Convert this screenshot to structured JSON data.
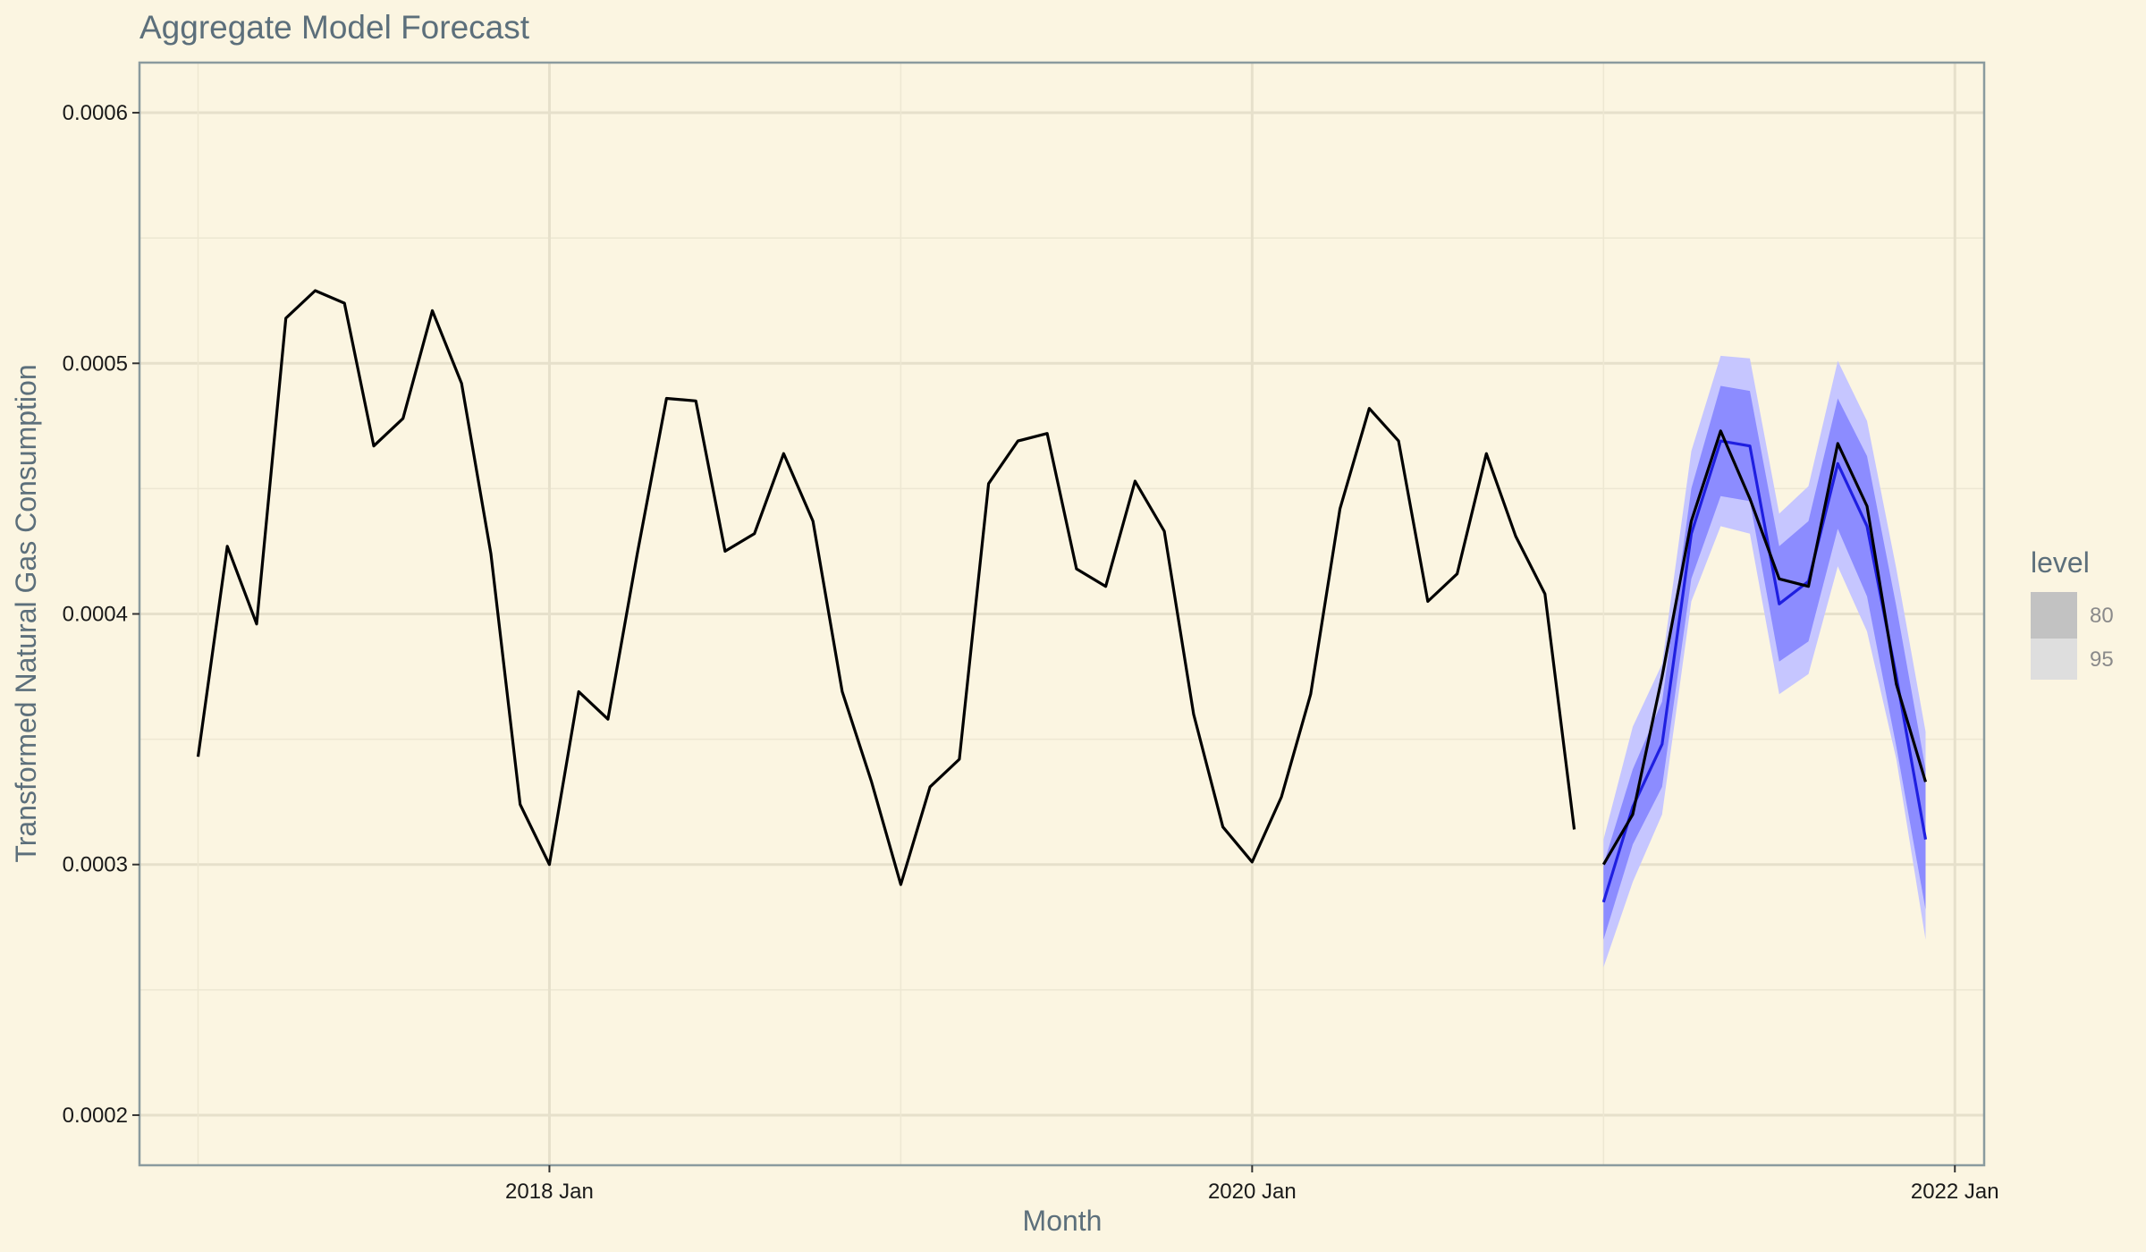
{
  "chart_data": {
    "type": "line",
    "title": "Aggregate Model Forecast",
    "xlabel": "Month",
    "ylabel": "Transformed Natural Gas Consumption",
    "x_ticks": [
      "2018 Jan",
      "2020 Jan",
      "2022 Jan"
    ],
    "y_ticks": [
      "0.0002",
      "0.0003",
      "0.0004",
      "0.0005",
      "0.0006"
    ],
    "xlim": [
      "2016-11",
      "2022-02"
    ],
    "ylim": [
      0.00018,
      0.00062
    ],
    "grid": true,
    "legend": {
      "title": "level",
      "position": "right",
      "entries": [
        {
          "label": "80",
          "color": "#c2c2c2"
        },
        {
          "label": "95",
          "color": "#dedede"
        }
      ]
    },
    "series": [
      {
        "role": "observed",
        "color": "#000000",
        "x": [
          "2017-01",
          "2017-02",
          "2017-03",
          "2017-04",
          "2017-05",
          "2017-06",
          "2017-07",
          "2017-08",
          "2017-09",
          "2017-10",
          "2017-11",
          "2017-12",
          "2018-01",
          "2018-02",
          "2018-03",
          "2018-04",
          "2018-05",
          "2018-06",
          "2018-07",
          "2018-08",
          "2018-09",
          "2018-10",
          "2018-11",
          "2018-12",
          "2019-01",
          "2019-02",
          "2019-03",
          "2019-04",
          "2019-05",
          "2019-06",
          "2019-07",
          "2019-08",
          "2019-09",
          "2019-10",
          "2019-11",
          "2019-12",
          "2020-01",
          "2020-02",
          "2020-03",
          "2020-04",
          "2020-05",
          "2020-06",
          "2020-07",
          "2020-08",
          "2020-09",
          "2020-10",
          "2020-11",
          "2020-12"
        ],
        "values": [
          0.000343,
          0.000427,
          0.000396,
          0.000518,
          0.000529,
          0.000524,
          0.000467,
          0.000478,
          0.000521,
          0.000492,
          0.000424,
          0.000324,
          0.0003,
          0.000369,
          0.000358,
          0.000424,
          0.000486,
          0.000485,
          0.000425,
          0.000432,
          0.000464,
          0.000437,
          0.000369,
          0.000333,
          0.000292,
          0.000331,
          0.000342,
          0.000452,
          0.000469,
          0.000472,
          0.000418,
          0.000411,
          0.000453,
          0.000433,
          0.00036,
          0.000315,
          0.000301,
          0.000327,
          0.000368,
          0.000442,
          0.000482,
          0.000469,
          0.000405,
          0.000416,
          0.000464,
          0.000431,
          0.000408,
          0.000314
        ]
      },
      {
        "role": "actual",
        "color": "#000000",
        "x": [
          "2021-01",
          "2021-02",
          "2021-03",
          "2021-04",
          "2021-05",
          "2021-06",
          "2021-07",
          "2021-08",
          "2021-09",
          "2021-10",
          "2021-11",
          "2021-12"
        ],
        "values": [
          0.0003,
          0.00032,
          0.000375,
          0.000437,
          0.000473,
          0.000446,
          0.000414,
          0.000411,
          0.000468,
          0.000443,
          0.000372,
          0.000333
        ]
      },
      {
        "role": "forecast",
        "color": "#1f1fe0",
        "x": [
          "2021-01",
          "2021-02",
          "2021-03",
          "2021-04",
          "2021-05",
          "2021-06",
          "2021-07",
          "2021-08",
          "2021-09",
          "2021-10",
          "2021-11",
          "2021-12"
        ],
        "values": [
          0.000285,
          0.000323,
          0.000348,
          0.000432,
          0.000469,
          0.000467,
          0.000404,
          0.000413,
          0.00046,
          0.000435,
          0.000375,
          0.00031
        ],
        "interval_80": {
          "color": "#8c8cff",
          "lower": [
            0.00027,
            0.000308,
            0.000331,
            0.000414,
            0.000447,
            0.000445,
            0.000381,
            0.000389,
            0.000434,
            0.000407,
            0.000347,
            0.000282
          ],
          "upper": [
            0.0003,
            0.000338,
            0.000365,
            0.00045,
            0.000491,
            0.000489,
            0.000427,
            0.000437,
            0.000486,
            0.000463,
            0.000403,
            0.000338
          ]
        },
        "interval_95": {
          "color": "#c6c6ff",
          "lower": [
            0.000259,
            0.000293,
            0.00032,
            0.000405,
            0.000435,
            0.000432,
            0.000368,
            0.000376,
            0.000419,
            0.000393,
            0.000342,
            0.00027
          ],
          "upper": [
            0.00031,
            0.000355,
            0.00038,
            0.000465,
            0.000503,
            0.000502,
            0.00044,
            0.000451,
            0.000501,
            0.000477,
            0.000418,
            0.000353
          ]
        }
      }
    ]
  }
}
